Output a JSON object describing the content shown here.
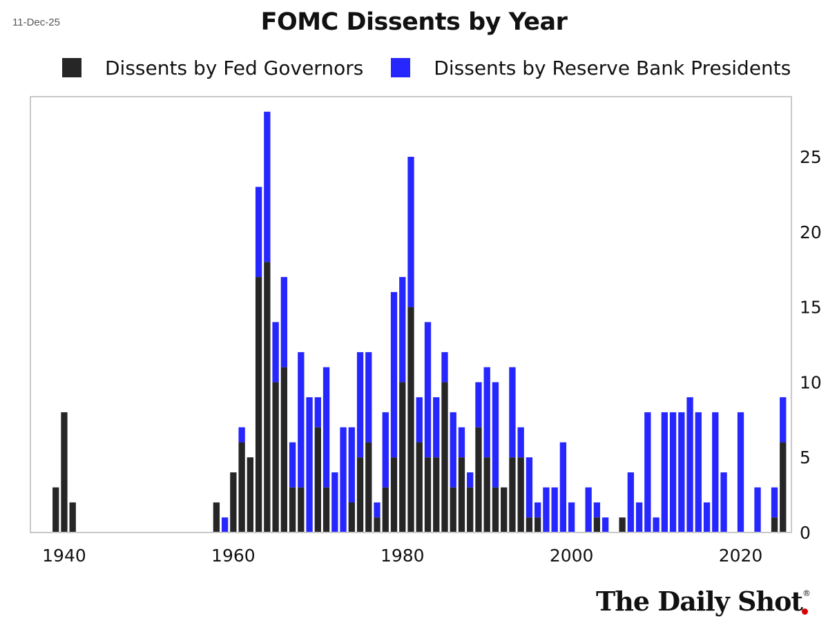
{
  "header": {
    "date": "11-Dec-25",
    "title": "FOMC Dissents by Year"
  },
  "branding": {
    "logo_text": "The Daily Shot",
    "registered_mark": "®"
  },
  "colors": {
    "governors": "#262626",
    "presidents": "#2626ff",
    "grid_border": "#c8c8c8",
    "logo_dot": "#d90000"
  },
  "chart_data": {
    "type": "bar",
    "stacked": true,
    "title": "FOMC Dissents by Year",
    "legend_position": "top",
    "y_axis_side": "right",
    "grid": false,
    "xlim": [
      1936,
      2026
    ],
    "ylim": [
      0,
      29
    ],
    "x_ticks": [
      1940,
      1960,
      1980,
      2000,
      2020
    ],
    "y_ticks": [
      0,
      5,
      10,
      15,
      20,
      25
    ],
    "years": [
      1939,
      1940,
      1941,
      1958,
      1959,
      1960,
      1961,
      1962,
      1963,
      1964,
      1965,
      1966,
      1967,
      1968,
      1969,
      1970,
      1971,
      1972,
      1973,
      1974,
      1975,
      1976,
      1977,
      1978,
      1979,
      1980,
      1981,
      1982,
      1983,
      1984,
      1985,
      1986,
      1987,
      1988,
      1989,
      1990,
      1991,
      1992,
      1993,
      1994,
      1995,
      1996,
      1997,
      1998,
      1999,
      2000,
      2002,
      2003,
      2004,
      2006,
      2007,
      2008,
      2009,
      2010,
      2011,
      2012,
      2013,
      2014,
      2015,
      2016,
      2017,
      2018,
      2019,
      2020,
      2022,
      2024,
      2025
    ],
    "series": [
      {
        "name": "Dissents by Fed Governors",
        "values": [
          3,
          8,
          2,
          2,
          0,
          4,
          6,
          5,
          17,
          18,
          10,
          11,
          3,
          3,
          0,
          7,
          3,
          0,
          0,
          2,
          5,
          6,
          1,
          3,
          5,
          10,
          15,
          6,
          5,
          5,
          10,
          3,
          5,
          3,
          7,
          5,
          3,
          3,
          5,
          5,
          1,
          1,
          0,
          0,
          0,
          0,
          0,
          1,
          0,
          1,
          0,
          0,
          0,
          0,
          0,
          0,
          0,
          0,
          0,
          0,
          0,
          0,
          0,
          0,
          0,
          1,
          6
        ]
      },
      {
        "name": "Dissents by Reserve Bank Presidents",
        "values": [
          0,
          0,
          0,
          0,
          1,
          0,
          1,
          0,
          6,
          10,
          4,
          6,
          3,
          9,
          9,
          2,
          8,
          4,
          7,
          5,
          7,
          6,
          1,
          5,
          11,
          7,
          10,
          3,
          9,
          4,
          2,
          5,
          2,
          1,
          3,
          6,
          7,
          0,
          6,
          2,
          4,
          1,
          3,
          3,
          6,
          2,
          3,
          1,
          1,
          0,
          4,
          2,
          8,
          1,
          8,
          8,
          8,
          9,
          8,
          2,
          8,
          4,
          0,
          8,
          3,
          2,
          3
        ]
      }
    ]
  }
}
